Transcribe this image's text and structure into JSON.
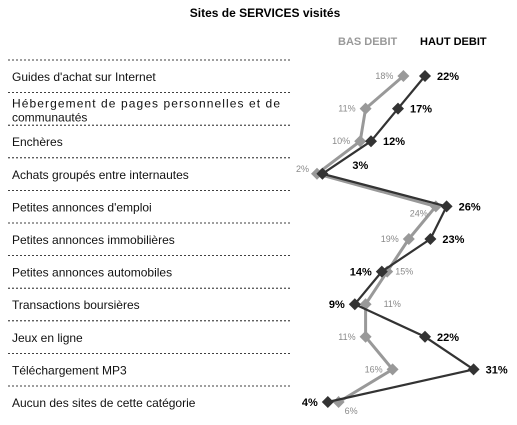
{
  "chart_data": {
    "type": "line",
    "title": "Sites de SERVICES visités",
    "categories": [
      "Guides d'achat sur Internet",
      "Hébergement de pages personnelles et de communautés",
      "Enchères",
      "Achats groupés entre internautes",
      "Petites annonces d'emploi",
      "Petites annonces immobilières",
      "Petites annonces automobiles",
      "Transactions boursières",
      "Jeux en ligne",
      "Téléchargement MP3",
      "Aucun des sites de cette catégorie"
    ],
    "category_lines": [
      [
        "Guides d'achat sur Internet"
      ],
      [
        "Hébergement de pages personnelles et de",
        "communautés"
      ],
      [
        "Enchères"
      ],
      [
        "Achats groupés entre internautes"
      ],
      [
        "Petites annonces d'emploi"
      ],
      [
        "Petites annonces immobilières"
      ],
      [
        "Petites annonces automobiles"
      ],
      [
        "Transactions boursières"
      ],
      [
        "Jeux en ligne"
      ],
      [
        "Téléchargement MP3"
      ],
      [
        "Aucun des sites de cette catégorie"
      ]
    ],
    "series": [
      {
        "name": "BAS DEBIT",
        "values": [
          18,
          11,
          10,
          2,
          24,
          19,
          15,
          11,
          11,
          16,
          6
        ],
        "labels": [
          "18%",
          "11%",
          "10%",
          "2%",
          "24%",
          "19%",
          "15%",
          "11%",
          "11%",
          "16%",
          "6%"
        ],
        "color": "#999999"
      },
      {
        "name": "HAUT DEBIT",
        "values": [
          22,
          17,
          12,
          3,
          26,
          23,
          14,
          9,
          22,
          31,
          4
        ],
        "labels": [
          "22%",
          "17%",
          "12%",
          "3%",
          "26%",
          "23%",
          "14%",
          "9%",
          "22%",
          "31%",
          "4%"
        ],
        "color": "#333333"
      }
    ],
    "orientation": "horizontal",
    "legend_position": "top-right",
    "grid": false
  }
}
